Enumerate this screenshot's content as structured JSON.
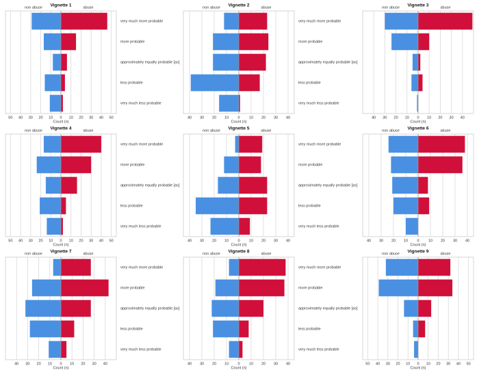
{
  "chart_data": [
    {
      "type": "pyramid",
      "title": "Vignette 1",
      "x_label": "Count (n)",
      "categories": [
        "very much more probable",
        "more probable",
        "approximately equally probable [as]",
        "less probable",
        "very much less probable"
      ],
      "series": [
        {
          "name": "non abuse",
          "color": "#4a90e2",
          "values": [
            29,
            17,
            8,
            16,
            11
          ]
        },
        {
          "name": "abuse",
          "color": "#d0103a",
          "values": [
            46,
            15,
            6,
            4,
            2
          ]
        }
      ],
      "xlim": [
        -55,
        55
      ],
      "xticks": [
        {
          "value": -50,
          "label": "50"
        },
        {
          "value": -40,
          "label": "40"
        },
        {
          "value": -30,
          "label": "30"
        },
        {
          "value": -20,
          "label": "20"
        },
        {
          "value": -10,
          "label": "10"
        },
        0,
        10,
        20,
        30,
        40,
        50
      ],
      "grid": true
    },
    {
      "type": "pyramid",
      "title": "Vignette 2",
      "x_label": "Count (n)",
      "categories": [
        "very much more probable",
        "more probable",
        "approximately equally probable [as]",
        "less probable",
        "very much less probable"
      ],
      "series": [
        {
          "name": "non abuse",
          "color": "#4a90e2",
          "values": [
            12,
            21,
            21,
            39,
            16
          ]
        },
        {
          "name": "abuse",
          "color": "#d0103a",
          "values": [
            23,
            24,
            22,
            17,
            1
          ]
        }
      ],
      "xlim": [
        -45,
        45
      ],
      "xticks": [
        {
          "value": -40,
          "label": "40"
        },
        {
          "value": -30,
          "label": "30"
        },
        {
          "value": -20,
          "label": "20"
        },
        {
          "value": -10,
          "label": "10"
        },
        0,
        10,
        20,
        30,
        40
      ],
      "grid": true
    },
    {
      "type": "pyramid",
      "title": "Vignette 3",
      "x_label": "Count (n)",
      "categories": [
        null,
        null,
        null,
        null,
        null
      ],
      "series": [
        {
          "name": "non abuse",
          "color": "#4a90e2",
          "values": [
            30,
            24,
            5,
            6,
            1
          ]
        },
        {
          "name": "abuse",
          "color": "#d0103a",
          "values": [
            49,
            10,
            2,
            4,
            0
          ]
        }
      ],
      "xlim": [
        -50,
        50
      ],
      "xticks": [
        {
          "value": -40,
          "label": "40"
        },
        {
          "value": -30,
          "label": "30"
        },
        {
          "value": -20,
          "label": "20"
        },
        {
          "value": -10,
          "label": "10"
        },
        0,
        10,
        20,
        30,
        40
      ],
      "grid": true
    },
    {
      "type": "pyramid",
      "title": "Vignette 4",
      "x_label": "Count (n)",
      "categories": [
        "very much more probable",
        "more probable",
        "approximately equally probable [as]",
        "less probable",
        "very much less probable"
      ],
      "series": [
        {
          "name": "non abuse",
          "color": "#4a90e2",
          "values": [
            17,
            24,
            15,
            21,
            14
          ]
        },
        {
          "name": "abuse",
          "color": "#d0103a",
          "values": [
            40,
            30,
            16,
            5,
            2
          ]
        }
      ],
      "xlim": [
        -55,
        55
      ],
      "xticks": [
        {
          "value": -50,
          "label": "50"
        },
        {
          "value": -40,
          "label": "40"
        },
        {
          "value": -30,
          "label": "30"
        },
        {
          "value": -20,
          "label": "20"
        },
        {
          "value": -10,
          "label": "10"
        },
        0,
        10,
        20,
        30,
        40,
        50
      ],
      "grid": true
    },
    {
      "type": "pyramid",
      "title": "Vignette 5",
      "x_label": "Count (n)",
      "categories": [
        "very much more probable",
        "more probable",
        "approximately equally probable [as]",
        "less probable",
        "very much less probable"
      ],
      "series": [
        {
          "name": "non abuse",
          "color": "#4a90e2",
          "values": [
            3,
            12,
            17,
            35,
            23
          ]
        },
        {
          "name": "abuse",
          "color": "#d0103a",
          "values": [
            19,
            18,
            23,
            23,
            9
          ]
        }
      ],
      "xlim": [
        -45,
        45
      ],
      "xticks": [
        {
          "value": -40,
          "label": "40"
        },
        {
          "value": -30,
          "label": "30"
        },
        {
          "value": -20,
          "label": "20"
        },
        {
          "value": -10,
          "label": "10"
        },
        0,
        10,
        20,
        30,
        40
      ],
      "grid": true
    },
    {
      "type": "pyramid",
      "title": "Vignette 6",
      "x_label": "Count (n)",
      "categories": [
        null,
        null,
        null,
        null,
        null
      ],
      "series": [
        {
          "name": "non abuse",
          "color": "#4a90e2",
          "values": [
            24,
            22,
            21,
            20,
            10
          ]
        },
        {
          "name": "abuse",
          "color": "#d0103a",
          "values": [
            38,
            36,
            8,
            9,
            0
          ]
        }
      ],
      "xlim": [
        -45,
        45
      ],
      "xticks": [
        {
          "value": -40,
          "label": "40"
        },
        {
          "value": -30,
          "label": "30"
        },
        {
          "value": -20,
          "label": "20"
        },
        {
          "value": -10,
          "label": "10"
        },
        0,
        10,
        20,
        30,
        40
      ],
      "grid": true
    },
    {
      "type": "pyramid",
      "title": "Vignette 7",
      "x_label": "Count (n)",
      "categories": [
        "very much more probable",
        "more probable",
        "approximately equally probable [as]",
        "less probable",
        "very much less probable"
      ],
      "series": [
        {
          "name": "non abuse",
          "color": "#4a90e2",
          "values": [
            7,
            26,
            32,
            28,
            11
          ]
        },
        {
          "name": "abuse",
          "color": "#d0103a",
          "values": [
            27,
            43,
            27,
            12,
            5
          ]
        }
      ],
      "xlim": [
        -50,
        50
      ],
      "xticks": [
        {
          "value": -40,
          "label": "40"
        },
        {
          "value": -30,
          "label": "30"
        },
        {
          "value": -20,
          "label": "20"
        },
        {
          "value": -10,
          "label": "10"
        },
        0,
        10,
        20,
        30,
        40
      ],
      "grid": true
    },
    {
      "type": "pyramid",
      "title": "Vignette 8",
      "x_label": "Count (n)",
      "categories": [
        "very much more probable",
        "more probable",
        "approximately equally probable [as]",
        "less probable",
        "very much less probable"
      ],
      "series": [
        {
          "name": "non abuse",
          "color": "#4a90e2",
          "values": [
            8,
            19,
            22,
            21,
            8
          ]
        },
        {
          "name": "abuse",
          "color": "#d0103a",
          "values": [
            38,
            37,
            20,
            8,
            3
          ]
        }
      ],
      "xlim": [
        -45,
        45
      ],
      "xticks": [
        {
          "value": -40,
          "label": "40"
        },
        {
          "value": -30,
          "label": "30"
        },
        {
          "value": -20,
          "label": "20"
        },
        {
          "value": -10,
          "label": "10"
        },
        0,
        10,
        20,
        30,
        40
      ],
      "grid": true
    },
    {
      "type": "pyramid",
      "title": "Vignette 9",
      "x_label": "Count (n)",
      "categories": [
        null,
        null,
        null,
        null,
        null
      ],
      "series": [
        {
          "name": "non abuse",
          "color": "#4a90e2",
          "values": [
            32,
            39,
            14,
            5,
            4
          ]
        },
        {
          "name": "abuse",
          "color": "#d0103a",
          "values": [
            32,
            34,
            13,
            7,
            0
          ]
        }
      ],
      "xlim": [
        -55,
        55
      ],
      "xticks": [
        {
          "value": -50,
          "label": "50"
        },
        {
          "value": -40,
          "label": "40"
        },
        {
          "value": -30,
          "label": "30"
        },
        {
          "value": -20,
          "label": "20"
        },
        {
          "value": -10,
          "label": "10"
        },
        0,
        10,
        20,
        30,
        40,
        50
      ],
      "grid": true
    }
  ]
}
